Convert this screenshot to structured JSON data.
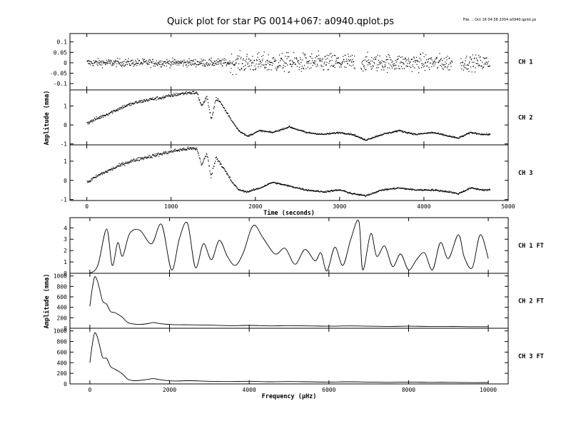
{
  "header": {
    "title": "Quick plot for star PG 0014+067:  a0940.qplot.ps",
    "stamp": "File: .: Oct 16 04:58 2004  a0940.qplot.ps"
  },
  "chart_data": [
    {
      "type": "scatter",
      "panel": "CH 1",
      "x_range": [
        0,
        4780
      ],
      "xlim": [
        -200,
        5000
      ],
      "ylim": [
        -0.13,
        0.14
      ],
      "yticks": [
        0.1,
        0.05,
        0,
        -0.05,
        -0.1
      ],
      "ytick_labels": [
        "0.1",
        "0.05",
        "0",
        "-0.05",
        "-0.1"
      ],
      "gaps": [
        [
          3180,
          3250
        ],
        [
          4330,
          4430
        ]
      ],
      "segments": [
        {
          "x0": 0,
          "x1": 1700,
          "scatter": 0.018
        },
        {
          "x0": 1700,
          "x1": 3180,
          "scatter": 0.045
        },
        {
          "x0": 3250,
          "x1": 4330,
          "scatter": 0.04
        },
        {
          "x0": 4430,
          "x1": 4780,
          "scatter": 0.035
        }
      ]
    },
    {
      "type": "scatter",
      "panel": "CH 2",
      "xlim": [
        -200,
        5000
      ],
      "ylim": [
        -1.05,
        1.85
      ],
      "yticks": [
        1,
        0,
        -1
      ],
      "ytick_labels": [
        "1",
        "0",
        "-1"
      ],
      "ylabel": "Amplitude (mma)",
      "x": [
        0,
        150,
        300,
        450,
        600,
        750,
        900,
        1050,
        1200,
        1300,
        1360,
        1420,
        1470,
        1530,
        1580,
        1650,
        1720,
        1800,
        1900,
        2050,
        2200,
        2400,
        2600,
        2800,
        3000,
        3150,
        3300,
        3500,
        3700,
        3900,
        4100,
        4300,
        4400,
        4550,
        4700,
        4780
      ],
      "y": [
        0.1,
        0.4,
        0.7,
        1.0,
        1.2,
        1.35,
        1.45,
        1.6,
        1.7,
        1.7,
        1.0,
        1.5,
        0.3,
        1.4,
        1.2,
        0.7,
        0.2,
        -0.3,
        -0.6,
        -0.3,
        -0.4,
        -0.1,
        -0.4,
        -0.5,
        -0.4,
        -0.5,
        -0.8,
        -0.5,
        -0.3,
        -0.5,
        -0.4,
        -0.6,
        -0.7,
        -0.4,
        -0.5,
        -0.5
      ]
    },
    {
      "type": "scatter",
      "panel": "CH 3",
      "xlim": [
        -200,
        5000
      ],
      "ylim": [
        -1.05,
        1.85
      ],
      "yticks": [
        1,
        0,
        -1
      ],
      "ytick_labels": [
        "1",
        "0",
        "-1"
      ],
      "xticks": [
        0,
        1000,
        2000,
        3000,
        4000,
        5000
      ],
      "xtick_labels": [
        "0",
        "1000",
        "2000",
        "3000",
        "4000",
        "5000"
      ],
      "xlabel": "Time (seconds)",
      "x": [
        0,
        150,
        300,
        450,
        600,
        750,
        900,
        1050,
        1200,
        1300,
        1360,
        1420,
        1470,
        1530,
        1580,
        1650,
        1720,
        1800,
        1900,
        2050,
        2200,
        2400,
        2600,
        2800,
        3000,
        3150,
        3300,
        3500,
        3700,
        3900,
        4100,
        4300,
        4400,
        4550,
        4700,
        4780
      ],
      "y": [
        -0.1,
        0.3,
        0.6,
        0.9,
        1.1,
        1.25,
        1.4,
        1.55,
        1.65,
        1.65,
        0.8,
        1.4,
        0.2,
        1.2,
        0.9,
        0.4,
        -0.1,
        -0.5,
        -0.6,
        -0.4,
        -0.1,
        -0.3,
        -0.5,
        -0.6,
        -0.5,
        -0.7,
        -0.8,
        -0.5,
        -0.4,
        -0.5,
        -0.5,
        -0.6,
        -0.7,
        -0.4,
        -0.5,
        -0.5
      ]
    },
    {
      "type": "line",
      "panel": "CH 1 FT",
      "xlim": [
        -500,
        10500
      ],
      "ylim": [
        0,
        4.9
      ],
      "yticks": [
        0,
        1,
        2,
        3,
        4
      ],
      "ytick_labels": [
        "0",
        "1",
        "2",
        "3",
        "4"
      ],
      "x": [
        0,
        200,
        420,
        560,
        700,
        820,
        1000,
        1250,
        1550,
        1800,
        2050,
        2250,
        2450,
        2650,
        2850,
        3050,
        3250,
        3450,
        3650,
        3850,
        4100,
        4350,
        4650,
        4900,
        5150,
        5400,
        5650,
        5800,
        5950,
        6150,
        6350,
        6550,
        6750,
        6850,
        7050,
        7200,
        7400,
        7600,
        7800,
        8000,
        8200,
        8400,
        8600,
        8800,
        9000,
        9250,
        9400,
        9600,
        9800,
        10000
      ],
      "y": [
        0,
        0.7,
        3.9,
        0.7,
        2.7,
        1.5,
        3.5,
        3.8,
        2.6,
        4.3,
        0.3,
        3.1,
        4.4,
        0.5,
        2.6,
        1.2,
        2.9,
        1.5,
        0.7,
        1.8,
        4.2,
        3.1,
        1.7,
        2.2,
        0.8,
        2.1,
        1.1,
        1.8,
        0.2,
        2.3,
        0.7,
        3.0,
        4.6,
        0.3,
        3.5,
        1.5,
        2.4,
        0.6,
        1.7,
        0.3,
        1.2,
        1.8,
        0.3,
        2.7,
        1.3,
        3.4,
        1.4,
        0.5,
        3.4,
        1.3
      ]
    },
    {
      "type": "line",
      "panel": "CH 2 FT",
      "xlim": [
        -500,
        10500
      ],
      "ylim": [
        0,
        1050
      ],
      "yticks": [
        0,
        200,
        400,
        600,
        800,
        1000
      ],
      "ytick_labels": [
        "0",
        "200",
        "400",
        "600",
        "800",
        "1000"
      ],
      "ylabel": "Amplitude (mma)",
      "x": [
        0,
        60,
        120,
        180,
        240,
        320,
        420,
        520,
        620,
        720,
        830,
        950,
        1100,
        1300,
        1500,
        1600,
        1800,
        2100,
        2500,
        3000,
        3500,
        4000,
        4500,
        5000,
        5500,
        6000,
        6500,
        7000,
        7500,
        8000,
        8500,
        9000,
        9500,
        10000
      ],
      "y": [
        420,
        760,
        980,
        920,
        760,
        520,
        460,
        320,
        300,
        260,
        200,
        110,
        80,
        75,
        95,
        110,
        85,
        70,
        65,
        60,
        50,
        55,
        45,
        50,
        45,
        40,
        45,
        40,
        35,
        40,
        35,
        35,
        30,
        30
      ]
    },
    {
      "type": "line",
      "panel": "CH 3 FT",
      "xlim": [
        -500,
        10500
      ],
      "ylim": [
        0,
        1050
      ],
      "yticks": [
        0,
        200,
        400,
        600,
        800,
        1000
      ],
      "ytick_labels": [
        "0",
        "200",
        "400",
        "600",
        "800",
        "1000"
      ],
      "xticks": [
        0,
        2000,
        4000,
        6000,
        8000,
        10000
      ],
      "xtick_labels": [
        "0",
        "2000",
        "4000",
        "6000",
        "8000",
        "10000"
      ],
      "xlabel": "Frequency (μHz)",
      "x": [
        0,
        60,
        120,
        180,
        240,
        320,
        420,
        520,
        620,
        720,
        830,
        950,
        1100,
        1300,
        1500,
        1600,
        1800,
        2100,
        2500,
        3000,
        3500,
        4000,
        4500,
        5000,
        5500,
        6000,
        6500,
        7000,
        7500,
        8000,
        8500,
        9000,
        9500,
        10000
      ],
      "y": [
        400,
        740,
        960,
        900,
        740,
        500,
        480,
        330,
        280,
        240,
        180,
        90,
        60,
        70,
        90,
        100,
        75,
        55,
        60,
        50,
        45,
        50,
        40,
        45,
        40,
        35,
        40,
        35,
        30,
        35,
        30,
        30,
        25,
        25
      ]
    }
  ]
}
